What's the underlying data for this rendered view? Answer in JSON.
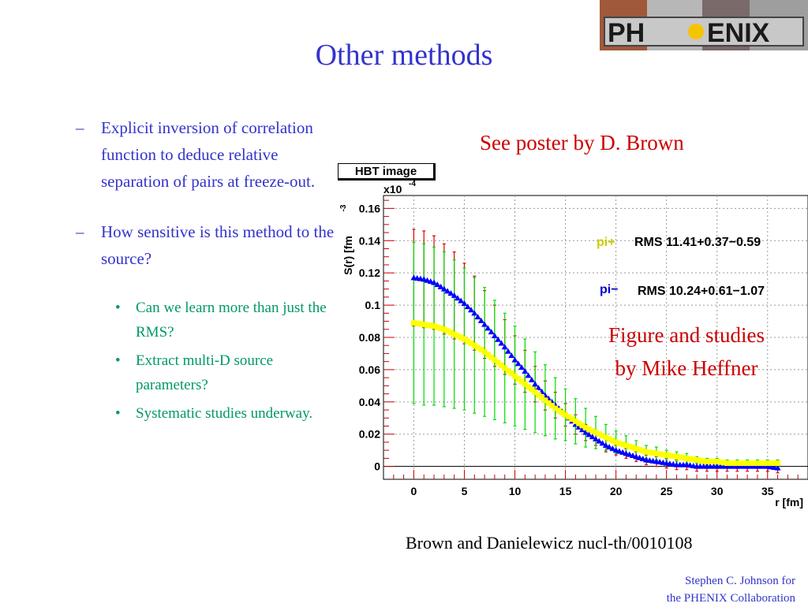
{
  "slide": {
    "title": "Other methods",
    "bullets": [
      "Explicit inversion of correlation function to deduce relative separation of pairs at freeze-out.",
      "How sensitive is this method to the source?"
    ],
    "sub_bullets": [
      "Can we learn more than just the RMS?",
      "Extract multi-D source parameters?",
      "Systematic studies underway."
    ],
    "poster_note": "See poster by D. Brown",
    "figure_credit_line1": "Figure and studies",
    "figure_credit_line2": "by Mike Heffner",
    "reference": "Brown and Danielewicz nucl-th/0010108",
    "footer_line1": "Stephen C. Johnson for",
    "footer_line2": "the PHENIX Collaboration",
    "logo_text_left": "PH",
    "logo_text_right": "ENIX",
    "colors": {
      "title": "#3333cc",
      "accent_red": "#cc0000",
      "sub_bullet_green": "#009966"
    }
  },
  "chart_data": {
    "type": "scatter",
    "title": "HBT image",
    "xlabel": "r [fm]",
    "ylabel": "S(r) [fm",
    "ylabel_exponent": "-3",
    "y_multiplier_base": "x10",
    "y_multiplier_exp": "-4",
    "xlim": [
      -3,
      39
    ],
    "ylim": [
      -0.008,
      0.168
    ],
    "x_ticks": [
      0,
      5,
      10,
      15,
      20,
      25,
      30,
      35
    ],
    "y_ticks": [
      0,
      0.02,
      0.04,
      0.06,
      0.08,
      0.1,
      0.12,
      0.14,
      0.16
    ],
    "y_tick_labels": [
      "0",
      "0.02",
      "0.04",
      "0.06",
      "0.08",
      "0.1",
      "0.12",
      "0.14",
      "0.16"
    ],
    "grid": true,
    "series": [
      {
        "name": "pi+",
        "stat_label": "RMS 11.41+0.37−0.59",
        "label_color": "#cccc00",
        "point_color": "#ffff00",
        "error_color": "#00dd00",
        "x": [
          0,
          1,
          2,
          3,
          4,
          5,
          6,
          7,
          8,
          9,
          10,
          11,
          12,
          13,
          14,
          15,
          16,
          17,
          18,
          19,
          20,
          21,
          22,
          23,
          24,
          25,
          26,
          27,
          28,
          29,
          30,
          31,
          32,
          33,
          34,
          35,
          36
        ],
        "y": [
          0.089,
          0.088,
          0.087,
          0.085,
          0.082,
          0.079,
          0.075,
          0.071,
          0.066,
          0.061,
          0.056,
          0.051,
          0.046,
          0.041,
          0.036,
          0.032,
          0.028,
          0.024,
          0.021,
          0.018,
          0.015,
          0.013,
          0.011,
          0.009,
          0.008,
          0.007,
          0.006,
          0.005,
          0.004,
          0.003,
          0.003,
          0.002,
          0.002,
          0.002,
          0.002,
          0.002,
          0.002
        ],
        "err": [
          0.05,
          0.05,
          0.049,
          0.048,
          0.046,
          0.044,
          0.042,
          0.04,
          0.037,
          0.034,
          0.031,
          0.028,
          0.025,
          0.022,
          0.019,
          0.016,
          0.014,
          0.012,
          0.01,
          0.008,
          0.007,
          0.006,
          0.005,
          0.004,
          0.004,
          0.003,
          0.003,
          0.003,
          0.002,
          0.002,
          0.002,
          0.002,
          0.002,
          0.002,
          0.002,
          0.002,
          0.002
        ]
      },
      {
        "name": "pi−",
        "stat_label": "RMS 10.24+0.61−1.07",
        "label_color": "#0000cc",
        "point_color": "#0000ff",
        "error_color": "#dd0000",
        "x": [
          0,
          1,
          2,
          3,
          4,
          5,
          6,
          7,
          8,
          9,
          10,
          11,
          12,
          13,
          14,
          15,
          16,
          17,
          18,
          19,
          20,
          21,
          22,
          23,
          24,
          25,
          26,
          27,
          28,
          29,
          30,
          31,
          32,
          33,
          34,
          35,
          36
        ],
        "y": [
          0.117,
          0.116,
          0.114,
          0.11,
          0.106,
          0.101,
          0.095,
          0.088,
          0.081,
          0.074,
          0.066,
          0.059,
          0.051,
          0.044,
          0.038,
          0.032,
          0.026,
          0.021,
          0.017,
          0.013,
          0.01,
          0.008,
          0.006,
          0.004,
          0.003,
          0.002,
          0.001,
          0.001,
          0.0,
          0.0,
          0.0,
          0.0,
          0.0,
          0.0,
          0.0,
          0.0,
          -0.001
        ],
        "err": [
          0.03,
          0.03,
          0.029,
          0.028,
          0.027,
          0.025,
          0.023,
          0.021,
          0.019,
          0.017,
          0.015,
          0.013,
          0.011,
          0.009,
          0.008,
          0.007,
          0.006,
          0.005,
          0.004,
          0.004,
          0.003,
          0.003,
          0.003,
          0.003,
          0.003,
          0.003,
          0.003,
          0.003,
          0.003,
          0.003,
          0.003,
          0.003,
          0.003,
          0.003,
          0.003,
          0.003,
          0.003
        ]
      }
    ]
  }
}
